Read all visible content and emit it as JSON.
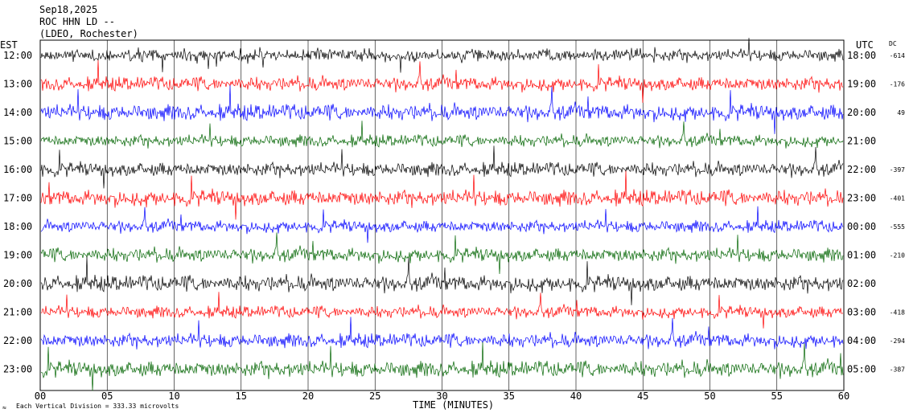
{
  "header": {
    "date": "Sep18,2025",
    "station": "ROC HHN LD --",
    "institution": "(LDEO, Rochester)"
  },
  "left_tz": "EST",
  "right_tz": "UTC",
  "dc_label": "DC",
  "xlabel": "TIME (MINUTES)",
  "footer": "Each Vertical Division =  333.33 microvolts",
  "colors": {
    "black": "#000000",
    "red": "#ff0000",
    "blue": "#0000ff",
    "green": "#006400"
  },
  "chart_data": {
    "type": "line",
    "title": "",
    "xlabel": "TIME (MINUTES)",
    "ylabel": "",
    "xlim": [
      0,
      60
    ],
    "x_ticks": [
      "00",
      "05",
      "10",
      "15",
      "20",
      "25",
      "30",
      "35",
      "40",
      "45",
      "50",
      "55",
      "60"
    ],
    "grid": true,
    "rows": [
      {
        "est": "12:00",
        "utc": "18:00",
        "dc": "-614",
        "color": "black"
      },
      {
        "est": "13:00",
        "utc": "19:00",
        "dc": "-176",
        "color": "red"
      },
      {
        "est": "14:00",
        "utc": "20:00",
        "dc": "49",
        "color": "blue"
      },
      {
        "est": "15:00",
        "utc": "21:00",
        "dc": "",
        "color": "green"
      },
      {
        "est": "16:00",
        "utc": "22:00",
        "dc": "-397",
        "color": "black"
      },
      {
        "est": "17:00",
        "utc": "23:00",
        "dc": "-401",
        "color": "red"
      },
      {
        "est": "18:00",
        "utc": "00:00",
        "dc": "-555",
        "color": "blue"
      },
      {
        "est": "19:00",
        "utc": "01:00",
        "dc": "-210",
        "color": "green"
      },
      {
        "est": "20:00",
        "utc": "02:00",
        "dc": "",
        "color": "black"
      },
      {
        "est": "21:00",
        "utc": "03:00",
        "dc": "-418",
        "color": "red"
      },
      {
        "est": "22:00",
        "utc": "04:00",
        "dc": "-294",
        "color": "blue"
      },
      {
        "est": "23:00",
        "utc": "05:00",
        "dc": "-387",
        "color": "green"
      }
    ]
  }
}
